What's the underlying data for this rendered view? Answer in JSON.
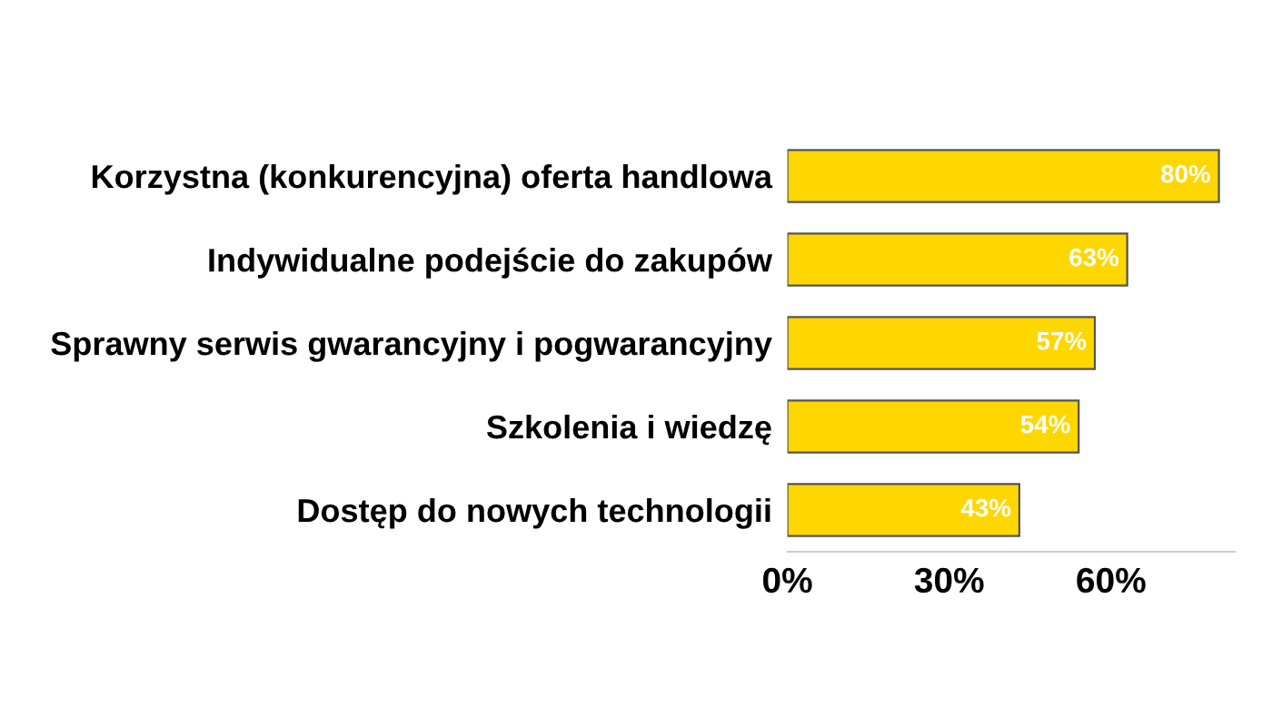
{
  "chart_data": {
    "type": "bar",
    "orientation": "horizontal",
    "categories": [
      "Korzystna (konkurencyjna) oferta handlowa",
      "Indywidualne podejście do zakupów",
      "Sprawny serwis gwarancyjny i pogwarancyjny",
      "Szkolenia i wiedzę",
      "Dostęp do nowych technologii"
    ],
    "values": [
      80,
      63,
      57,
      54,
      43
    ],
    "value_labels": [
      "80%",
      "63%",
      "57%",
      "54%",
      "43%"
    ],
    "color": "#ffd700",
    "xlim": [
      0,
      83
    ],
    "xticks": [
      {
        "value": 0,
        "label": "0%"
      },
      {
        "value": 30,
        "label": "30%"
      },
      {
        "value": 60,
        "label": "60%"
      }
    ],
    "grid": false
  }
}
